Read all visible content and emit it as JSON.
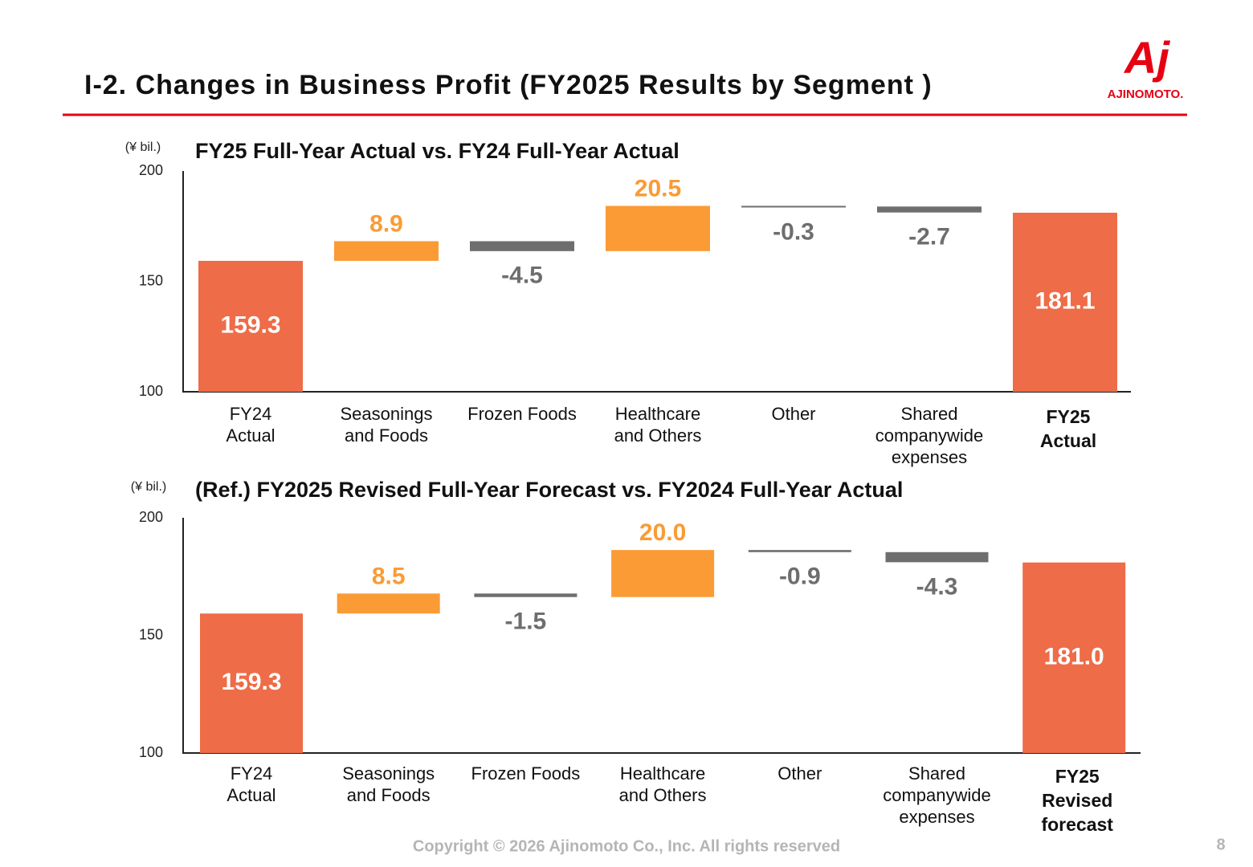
{
  "header": {
    "title": "I-2. Changes in Business Profit (FY2025 Results by Segment )"
  },
  "logo": {
    "mark": "Aj",
    "name": "AJINOMOTO."
  },
  "footer": {
    "copyright": "Copyright © 2026 Ajinomoto Co., Inc. All rights reserved",
    "page": "8"
  },
  "chart_data": [
    {
      "type": "waterfall",
      "title": "FY25 Full-Year Actual vs. FY24 Full-Year Actual",
      "y_label": "(¥ bil.)",
      "categories": [
        [
          "FY24",
          "Actual"
        ],
        [
          "Seasonings",
          "and Foods"
        ],
        [
          "Frozen Foods"
        ],
        [
          "Healthcare",
          "and Others"
        ],
        [
          "Other"
        ],
        [
          "Shared",
          "companywide",
          "expenses"
        ],
        [
          "FY25",
          "Actual"
        ]
      ],
      "values": [
        159.3,
        8.9,
        -4.5,
        20.5,
        -0.3,
        -2.7,
        181.1
      ],
      "value_labels": [
        "159.3",
        "8.9",
        "-4.5",
        "20.5",
        "-0.3",
        "-2.7",
        "181.1"
      ],
      "total_color": "#ee6c47",
      "increase_color": "#fa9b35",
      "decrease_color": "#6e6e6e",
      "ylim": [
        100,
        200
      ],
      "yticks": [
        100,
        150,
        200
      ],
      "grid": false
    },
    {
      "type": "waterfall",
      "title": "(Ref.) FY2025 Revised Full-Year Forecast vs. FY2024 Full-Year Actual",
      "y_label": "(¥ bil.)",
      "categories": [
        [
          "FY24",
          "Actual"
        ],
        [
          "Seasonings",
          "and Foods"
        ],
        [
          "Frozen Foods"
        ],
        [
          "Healthcare",
          "and Others"
        ],
        [
          "Other"
        ],
        [
          "Shared",
          "companywide",
          "expenses"
        ],
        [
          "FY25",
          "Revised",
          "forecast"
        ]
      ],
      "values": [
        159.3,
        8.5,
        -1.5,
        20.0,
        -0.9,
        -4.3,
        181.0
      ],
      "value_labels": [
        "159.3",
        "8.5",
        "-1.5",
        "20.0",
        "-0.9",
        "-4.3",
        "181.0"
      ],
      "total_color": "#ee6c47",
      "increase_color": "#fa9b35",
      "decrease_color": "#6e6e6e",
      "ylim": [
        100,
        200
      ],
      "yticks": [
        100,
        150,
        200
      ],
      "grid": false
    }
  ]
}
